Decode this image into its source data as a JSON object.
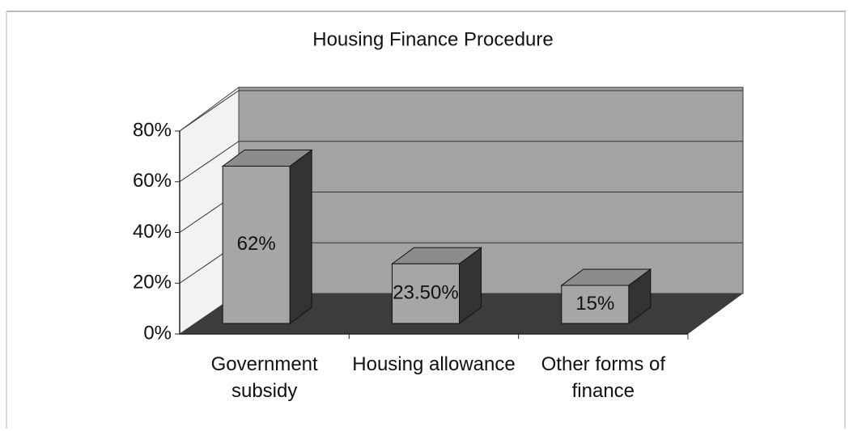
{
  "chart_data": {
    "type": "bar3d",
    "title": "Housing Finance Procedure",
    "categories": [
      "Government subsidy",
      "Housing allowance",
      "Other forms of finance"
    ],
    "values": [
      62,
      23.5,
      15
    ],
    "value_labels": [
      "62%",
      "23.50%",
      "15%"
    ],
    "color": "#a6a6a6",
    "ylim": [
      0,
      80
    ],
    "yticks": [
      {
        "value": 0,
        "label": "0%"
      },
      {
        "value": 20,
        "label": "20%"
      },
      {
        "value": 40,
        "label": "40%"
      },
      {
        "value": 60,
        "label": "60%"
      },
      {
        "value": 80,
        "label": "80%"
      }
    ],
    "grid": true
  }
}
